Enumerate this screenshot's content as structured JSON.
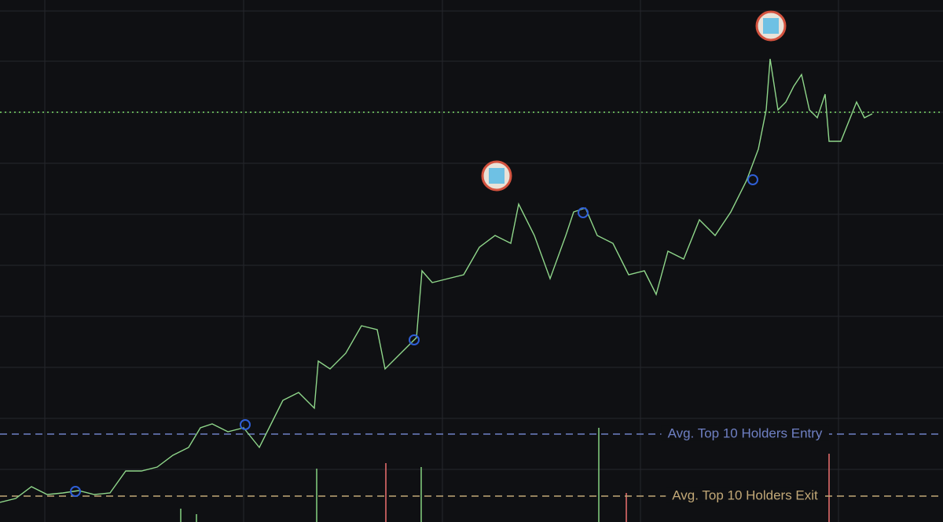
{
  "chart_data": {
    "type": "line",
    "x": [
      0,
      20,
      40,
      60,
      80,
      100,
      120,
      140,
      160,
      180,
      200,
      220,
      240,
      255,
      270,
      290,
      310,
      330,
      345,
      360,
      380,
      400,
      405,
      420,
      440,
      460,
      480,
      490,
      510,
      530,
      537,
      550,
      570,
      590,
      610,
      630,
      650,
      660,
      680,
      700,
      720,
      730,
      745,
      760,
      780,
      800,
      820,
      835,
      850,
      870,
      890,
      910,
      930,
      950,
      965,
      975,
      980,
      990,
      1000,
      1010,
      1020,
      1030,
      1040,
      1050,
      1055,
      1070,
      1090,
      1100,
      1110
    ],
    "series": [
      {
        "color": "#8fd68a",
        "values": [
          25,
          30,
          45,
          35,
          37,
          40,
          35,
          37,
          65,
          65,
          70,
          85,
          95,
          120,
          125,
          115,
          120,
          95,
          125,
          155,
          165,
          145,
          205,
          195,
          215,
          250,
          245,
          195,
          215,
          235,
          320,
          305,
          310,
          315,
          350,
          365,
          355,
          405,
          365,
          310,
          365,
          395,
          400,
          365,
          355,
          315,
          320,
          290,
          345,
          335,
          385,
          365,
          395,
          435,
          475,
          525,
          590,
          525,
          535,
          555,
          570,
          525,
          515,
          545,
          485,
          485,
          535,
          515,
          520
        ]
      }
    ],
    "markers": {
      "x": [
        96,
        312,
        527,
        742,
        958
      ],
      "values": [
        39,
        124,
        232,
        394,
        436
      ],
      "color": "#2f5fd6"
    },
    "volume": {
      "x": [
        230,
        250,
        403,
        491,
        536,
        762,
        797,
        1055
      ],
      "values": [
        17,
        10,
        68,
        75,
        70,
        120,
        37,
        87
      ],
      "colors": [
        "#7ec77a",
        "#7ec77a",
        "#7ec77a",
        "#e06a6a",
        "#7ec77a",
        "#7ec77a",
        "#e06a6a",
        "#e06a6a"
      ]
    },
    "levels": [
      {
        "label": "Avg. Top 10 Holders Entry",
        "value": 112,
        "color": "#6f80c4"
      },
      {
        "label": "Avg. Top 10 Holders Exit",
        "value": 33,
        "color": "#c2a877"
      },
      {
        "value": 522,
        "color": "#7edc6a"
      }
    ],
    "xlim": [
      0,
      1200
    ],
    "ylim": [
      0,
      665
    ],
    "xticks": [
      57,
      310,
      563,
      815,
      1067
    ],
    "yticks": [
      67,
      132,
      197,
      262,
      327,
      392,
      457,
      522,
      587,
      651
    ],
    "grid": true
  }
}
